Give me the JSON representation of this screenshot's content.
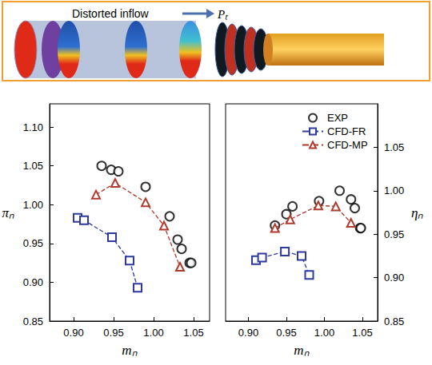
{
  "header": {
    "label": "Distorted inflow",
    "arrow_label": "Pₜ"
  },
  "chart_data": [
    {
      "type": "line",
      "x_label": "mₙ",
      "y_label": "πₙ",
      "xlim": [
        0.87,
        1.07
      ],
      "xticks": [
        {
          "value": 0.9,
          "label": "0.90"
        },
        {
          "value": 0.95,
          "label": "0.95"
        },
        {
          "value": 1.0,
          "label": "1.00"
        },
        {
          "value": 1.05,
          "label": "1.05"
        }
      ],
      "ylim": [
        0.85,
        1.13
      ],
      "yticks": [
        {
          "value": 0.85,
          "label": "0.85"
        },
        {
          "value": 0.9,
          "label": "0.90"
        },
        {
          "value": 0.95,
          "label": "0.95"
        },
        {
          "value": 1.0,
          "label": "1.00"
        },
        {
          "value": 1.05,
          "label": "1.05"
        },
        {
          "value": 1.1,
          "label": "1.10"
        }
      ],
      "grid": false,
      "series": [
        {
          "name": "EXP",
          "type": "scatter",
          "marker": "circle",
          "color": "#000000",
          "x": [
            0.935,
            0.947,
            0.956,
            0.99,
            1.02,
            1.03,
            1.035,
            1.045,
            1.047
          ],
          "values": [
            1.05,
            1.045,
            1.043,
            1.023,
            0.985,
            0.955,
            0.943,
            0.925,
            0.925
          ]
        },
        {
          "name": "CFD-FR",
          "type": "line",
          "marker": "square",
          "line_style": "dashed",
          "color": "#2e3a9e",
          "x": [
            0.905,
            0.913,
            0.948,
            0.97,
            0.98
          ],
          "values": [
            0.983,
            0.98,
            0.958,
            0.928,
            0.893
          ]
        },
        {
          "name": "CFD-MP",
          "type": "line",
          "marker": "triangle",
          "line_style": "dashed",
          "color": "#b03a2e",
          "x": [
            0.928,
            0.952,
            0.99,
            1.013,
            1.033
          ],
          "values": [
            1.013,
            1.028,
            1.003,
            0.973,
            0.92
          ]
        }
      ]
    },
    {
      "type": "line",
      "x_label": "mₙ",
      "y_label": "ηₙ",
      "legend": "top",
      "xlim": [
        0.87,
        1.07
      ],
      "xticks": [
        {
          "value": 0.9,
          "label": "0.90"
        },
        {
          "value": 0.95,
          "label": "0.95"
        },
        {
          "value": 1.0,
          "label": "1.00"
        },
        {
          "value": 1.05,
          "label": "1.05"
        }
      ],
      "ylim": [
        0.85,
        1.1
      ],
      "yticks": [
        {
          "value": 0.85,
          "label": "0.85"
        },
        {
          "value": 0.9,
          "label": "0.90"
        },
        {
          "value": 0.95,
          "label": "0.95"
        },
        {
          "value": 1.0,
          "label": "1.00"
        },
        {
          "value": 1.05,
          "label": "1.05"
        }
      ],
      "grid": false,
      "series": [
        {
          "name": "EXP",
          "type": "scatter",
          "marker": "circle",
          "color": "#000000",
          "x": [
            0.935,
            0.95,
            0.958,
            0.993,
            1.02,
            1.035,
            1.04,
            1.047,
            1.048
          ],
          "values": [
            0.96,
            0.973,
            0.982,
            0.988,
            1.0,
            0.99,
            0.98,
            0.957,
            0.957
          ]
        },
        {
          "name": "CFD-FR",
          "type": "line",
          "marker": "square",
          "line_style": "dashed",
          "color": "#2e3a9e",
          "x": [
            0.91,
            0.918,
            0.948,
            0.97,
            0.98
          ],
          "values": [
            0.92,
            0.923,
            0.93,
            0.925,
            0.903
          ]
        },
        {
          "name": "CFD-MP",
          "type": "line",
          "marker": "triangle",
          "line_style": "dashed",
          "color": "#b03a2e",
          "x": [
            0.935,
            0.955,
            0.992,
            1.015,
            1.035
          ],
          "values": [
            0.957,
            0.967,
            0.983,
            0.982,
            0.963
          ]
        }
      ]
    }
  ]
}
